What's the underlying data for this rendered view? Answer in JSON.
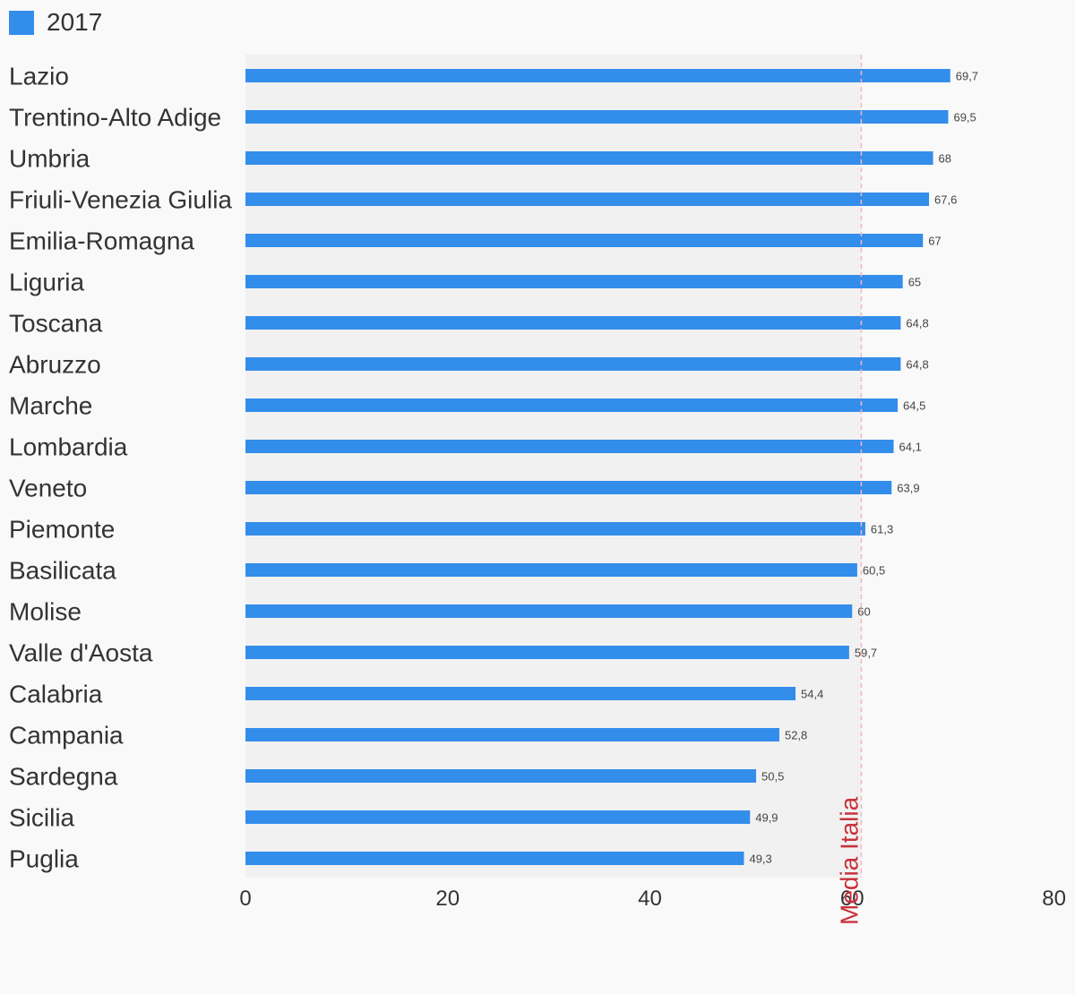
{
  "legend": {
    "label": "2017",
    "color": "#338deb"
  },
  "colors": {
    "bar": "#338deb",
    "plot_bg": "#f1f1f1",
    "ref_line": "#f4b6bf",
    "ref_text": "#c8323c"
  },
  "chart_data": {
    "type": "bar",
    "orientation": "horizontal",
    "title": "",
    "xlabel": "",
    "ylabel": "",
    "xlim": [
      0,
      80
    ],
    "ticks": [
      0,
      20,
      40,
      60,
      80
    ],
    "tick_labels": [
      "0",
      "20",
      "40",
      "60",
      "80"
    ],
    "grid": false,
    "legend_position": "top-left",
    "categories": [
      "Lazio",
      "Trentino-Alto Adige",
      "Umbria",
      "Friuli-Venezia Giulia",
      "Emilia-Romagna",
      "Liguria",
      "Toscana",
      "Abruzzo",
      "Marche",
      "Lombardia",
      "Veneto",
      "Piemonte",
      "Basilicata",
      "Molise",
      "Valle d'Aosta",
      "Calabria",
      "Campania",
      "Sardegna",
      "Sicilia",
      "Puglia"
    ],
    "series": [
      {
        "name": "2017",
        "values": [
          69.7,
          69.5,
          68,
          67.6,
          67,
          65,
          64.8,
          64.8,
          64.5,
          64.1,
          63.9,
          61.3,
          60.5,
          60,
          59.7,
          54.4,
          52.8,
          50.5,
          49.9,
          49.3
        ],
        "value_labels": [
          "69,7",
          "69,5",
          "68",
          "67,6",
          "67",
          "65",
          "64,8",
          "64,8",
          "64,5",
          "64,1",
          "63,9",
          "61,3",
          "60,5",
          "60",
          "59,7",
          "54,4",
          "52,8",
          "50,5",
          "49,9",
          "49,3"
        ]
      }
    ],
    "reference_line": {
      "value": 60.9,
      "label": "Media Italia"
    }
  }
}
